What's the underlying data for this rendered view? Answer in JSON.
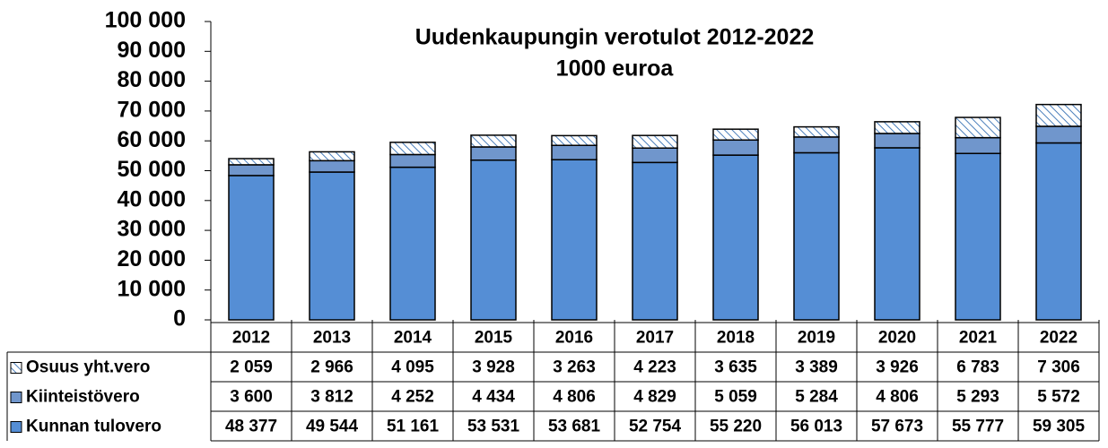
{
  "chart_data": {
    "type": "stacked_bar",
    "title": "Uudenkaupungin verotulot 2012-2022",
    "subtitle": "1000 euroa",
    "categories": [
      "2012",
      "2013",
      "2014",
      "2015",
      "2016",
      "2017",
      "2018",
      "2019",
      "2020",
      "2021",
      "2022"
    ],
    "series": [
      {
        "name": "Kunnan tulovero",
        "color": "#558ed5",
        "values": [
          48377,
          49544,
          51161,
          53531,
          53681,
          52754,
          55220,
          56013,
          57673,
          55777,
          59305
        ],
        "value_labels": [
          "48 377",
          "49 544",
          "51 161",
          "53 531",
          "53 681",
          "52 754",
          "55 220",
          "56 013",
          "57 673",
          "55 777",
          "59 305"
        ]
      },
      {
        "name": "Kiinteistövero",
        "color": "#7096cc",
        "values": [
          3600,
          3812,
          4252,
          4434,
          4806,
          4829,
          5059,
          5284,
          4806,
          5293,
          5572
        ],
        "value_labels": [
          "3 600",
          "3 812",
          "4 252",
          "4 434",
          "4 806",
          "4 829",
          "5 059",
          "5 284",
          "4 806",
          "5 293",
          "5 572"
        ]
      },
      {
        "name": "Osuus yht.vero",
        "color": "#4a7ebb",
        "pattern": "hatch",
        "values": [
          2059,
          2966,
          4095,
          3928,
          3263,
          4223,
          3635,
          3389,
          3926,
          6783,
          7306
        ],
        "value_labels": [
          "2 059",
          "2 966",
          "4 095",
          "3 928",
          "3 263",
          "4 223",
          "3 635",
          "3 389",
          "3 926",
          "6 783",
          "7 306"
        ]
      }
    ],
    "ylim": [
      0,
      100000
    ],
    "yticks": [
      0,
      {
        "value": 10000,
        "label": "10 000"
      },
      {
        "value": 20000,
        "label": "20 000"
      },
      {
        "value": 30000,
        "label": "30 000"
      },
      {
        "value": 40000,
        "label": "40 000"
      },
      {
        "value": 50000,
        "label": "50 000"
      },
      {
        "value": 60000,
        "label": "60 000"
      },
      {
        "value": 70000,
        "label": "70 000"
      },
      {
        "value": 80000,
        "label": "80 000"
      },
      {
        "value": 90000,
        "label": "90 000"
      },
      {
        "value": 100000,
        "label": "100 000"
      }
    ]
  }
}
